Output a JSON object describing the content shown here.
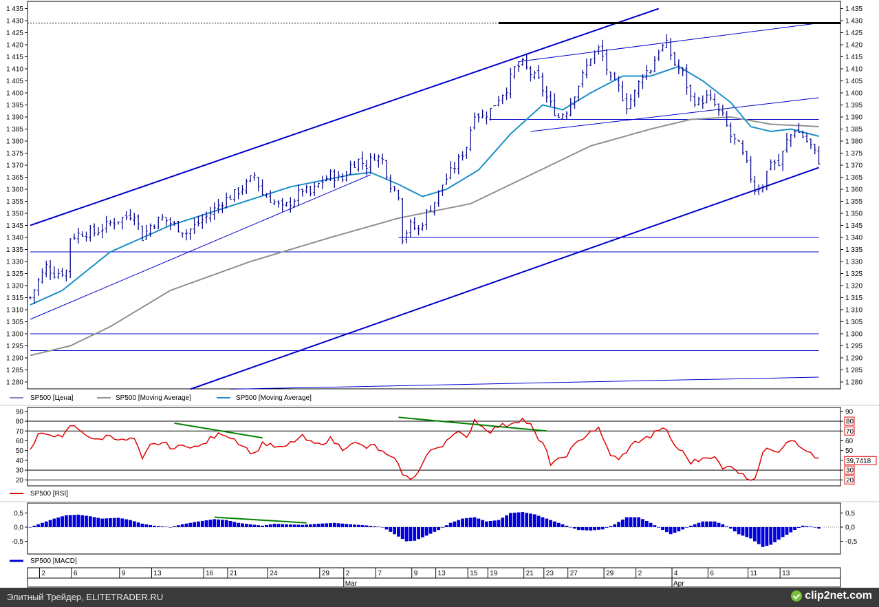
{
  "chart_data": [
    {
      "type": "line",
      "panel": "price",
      "y_ticks": [
        "1 280",
        "1 285",
        "1 290",
        "1 295",
        "1 300",
        "1 305",
        "1 310",
        "1 315",
        "1 320",
        "1 325",
        "1 330",
        "1 335",
        "1 340",
        "1 345",
        "1 350",
        "1 355",
        "1 360",
        "1 365",
        "1 370",
        "1 375",
        "1 380",
        "1 385",
        "1 390",
        "1 395",
        "1 400",
        "1 405",
        "1 410",
        "1 415",
        "1 420",
        "1 425",
        "1 430",
        "1 435"
      ],
      "ylim": [
        1277,
        1436
      ],
      "x_ticks": [
        "2",
        "6",
        "9",
        "13",
        "16",
        "21",
        "24",
        "29",
        "2",
        "7",
        "9",
        "13",
        "15",
        "19",
        "21",
        "23",
        "27",
        "29",
        "2",
        "4",
        "6",
        "11",
        "13"
      ],
      "month_labels": [
        "Mar",
        "Apr"
      ],
      "legend": [
        "SP500 [Цена]",
        "SP500 [Moving Average]",
        "SP500 [Moving Average]"
      ],
      "series_colors": {
        "price": "#0a0a8c",
        "ma_long": "#909090",
        "ma_short": "#1a8fc8",
        "lines": "#0000cc"
      },
      "close_anchors": [
        [
          0,
          1315
        ],
        [
          2,
          1322
        ],
        [
          4,
          1328
        ],
        [
          6,
          1325
        ],
        [
          9,
          1326
        ],
        [
          10,
          1340
        ],
        [
          13,
          1342
        ],
        [
          16,
          1342
        ],
        [
          20,
          1346
        ],
        [
          23,
          1348
        ],
        [
          26,
          1350
        ],
        [
          28,
          1340
        ],
        [
          30,
          1345
        ],
        [
          33,
          1348
        ],
        [
          36,
          1345
        ],
        [
          39,
          1342
        ],
        [
          42,
          1346
        ],
        [
          45,
          1350
        ],
        [
          48,
          1355
        ],
        [
          51,
          1358
        ],
        [
          54,
          1362
        ],
        [
          56,
          1366
        ],
        [
          58,
          1358
        ],
        [
          60,
          1356
        ],
        [
          63,
          1352
        ],
        [
          66,
          1356
        ],
        [
          68,
          1360
        ],
        [
          70,
          1358
        ],
        [
          72,
          1362
        ],
        [
          75,
          1366
        ],
        [
          78,
          1364
        ],
        [
          80,
          1370
        ],
        [
          82,
          1372
        ],
        [
          84,
          1370
        ],
        [
          86,
          1374
        ],
        [
          88,
          1372
        ],
        [
          90,
          1362
        ],
        [
          92,
          1358
        ],
        [
          93,
          1340
        ],
        [
          95,
          1345
        ],
        [
          97,
          1343
        ],
        [
          99,
          1350
        ],
        [
          101,
          1355
        ],
        [
          103,
          1362
        ],
        [
          105,
          1367
        ],
        [
          107,
          1372
        ],
        [
          109,
          1378
        ],
        [
          111,
          1392
        ],
        [
          113,
          1390
        ],
        [
          115,
          1393
        ],
        [
          117,
          1398
        ],
        [
          119,
          1402
        ],
        [
          121,
          1410
        ],
        [
          123,
          1412
        ],
        [
          125,
          1408
        ],
        [
          127,
          1405
        ],
        [
          129,
          1398
        ],
        [
          130,
          1395
        ],
        [
          132,
          1390
        ],
        [
          134,
          1393
        ],
        [
          136,
          1400
        ],
        [
          138,
          1407
        ],
        [
          140,
          1415
        ],
        [
          142,
          1418
        ],
        [
          143,
          1415
        ],
        [
          145,
          1405
        ],
        [
          147,
          1402
        ],
        [
          149,
          1395
        ],
        [
          151,
          1400
        ],
        [
          153,
          1408
        ],
        [
          155,
          1410
        ],
        [
          157,
          1418
        ],
        [
          159,
          1420
        ],
        [
          161,
          1412
        ],
        [
          163,
          1408
        ],
        [
          165,
          1398
        ],
        [
          167,
          1396
        ],
        [
          169,
          1398
        ],
        [
          171,
          1395
        ],
        [
          172,
          1392
        ],
        [
          173,
          1390
        ],
        [
          175,
          1382
        ],
        [
          177,
          1378
        ],
        [
          179,
          1370
        ],
        [
          181,
          1360
        ],
        [
          183,
          1362
        ],
        [
          185,
          1372
        ],
        [
          187,
          1370
        ],
        [
          189,
          1380
        ],
        [
          191,
          1385
        ],
        [
          193,
          1382
        ],
        [
          195,
          1378
        ],
        [
          197,
          1372
        ]
      ],
      "long_ma_anchors": [
        [
          0,
          1291
        ],
        [
          10,
          1295
        ],
        [
          20,
          1303
        ],
        [
          35,
          1318
        ],
        [
          55,
          1330
        ],
        [
          75,
          1340
        ],
        [
          92,
          1348
        ],
        [
          110,
          1354
        ],
        [
          125,
          1366
        ],
        [
          140,
          1378
        ],
        [
          155,
          1385
        ],
        [
          165,
          1389
        ],
        [
          175,
          1390
        ],
        [
          185,
          1387
        ],
        [
          197,
          1386
        ]
      ],
      "short_ma_anchors": [
        [
          0,
          1312
        ],
        [
          8,
          1318
        ],
        [
          20,
          1334
        ],
        [
          35,
          1345
        ],
        [
          50,
          1353
        ],
        [
          65,
          1361
        ],
        [
          80,
          1366
        ],
        [
          85,
          1367
        ],
        [
          92,
          1362
        ],
        [
          98,
          1357
        ],
        [
          104,
          1360
        ],
        [
          112,
          1368
        ],
        [
          120,
          1383
        ],
        [
          128,
          1395
        ],
        [
          133,
          1393
        ],
        [
          140,
          1400
        ],
        [
          148,
          1407
        ],
        [
          155,
          1407
        ],
        [
          162,
          1411
        ],
        [
          168,
          1405
        ],
        [
          175,
          1396
        ],
        [
          180,
          1386
        ],
        [
          185,
          1384
        ],
        [
          190,
          1385
        ],
        [
          197,
          1382
        ]
      ],
      "trendlines_data_units": [
        [
          0,
          1345,
          157,
          1435
        ],
        [
          0,
          1306,
          85,
          1366
        ],
        [
          40,
          1277,
          197,
          1369
        ],
        [
          50,
          1277,
          197,
          1282
        ],
        [
          122,
          1413,
          197,
          1429
        ],
        [
          125,
          1384,
          197,
          1398
        ],
        [
          115,
          1389,
          197,
          1389
        ],
        [
          92,
          1340,
          197,
          1340
        ],
        [
          0,
          1334,
          197,
          1334
        ],
        [
          0,
          1300,
          197,
          1300
        ],
        [
          0,
          1293,
          197,
          1293
        ]
      ],
      "thick_line": [
        117,
        1429,
        197,
        1429
      ],
      "dashed_line": [
        0,
        1429,
        117,
        1429
      ]
    },
    {
      "type": "line",
      "panel": "rsi",
      "legend": [
        "SP500 [RSI]"
      ],
      "y_ticks": [
        "20",
        "30",
        "40",
        "50",
        "60",
        "70",
        "80",
        "90"
      ],
      "right_labels": [
        "80",
        "70",
        "39,7418",
        "30",
        "20"
      ],
      "ylim": [
        16,
        92
      ],
      "levels": [
        20,
        30,
        70,
        80
      ],
      "values_anchors": [
        [
          0,
          50
        ],
        [
          2,
          65
        ],
        [
          5,
          68
        ],
        [
          8,
          62
        ],
        [
          10,
          76
        ],
        [
          13,
          70
        ],
        [
          16,
          60
        ],
        [
          20,
          66
        ],
        [
          23,
          60
        ],
        [
          26,
          62
        ],
        [
          28,
          40
        ],
        [
          30,
          55
        ],
        [
          33,
          58
        ],
        [
          36,
          52
        ],
        [
          39,
          56
        ],
        [
          42,
          53
        ],
        [
          45,
          62
        ],
        [
          48,
          68
        ],
        [
          51,
          62
        ],
        [
          54,
          52
        ],
        [
          56,
          46
        ],
        [
          58,
          58
        ],
        [
          60,
          55
        ],
        [
          63,
          52
        ],
        [
          66,
          60
        ],
        [
          68,
          64
        ],
        [
          70,
          58
        ],
        [
          72,
          56
        ],
        [
          75,
          62
        ],
        [
          78,
          52
        ],
        [
          80,
          58
        ],
        [
          82,
          56
        ],
        [
          84,
          53
        ],
        [
          86,
          55
        ],
        [
          88,
          48
        ],
        [
          90,
          42
        ],
        [
          92,
          38
        ],
        [
          93,
          24
        ],
        [
          95,
          22
        ],
        [
          97,
          28
        ],
        [
          99,
          45
        ],
        [
          101,
          52
        ],
        [
          103,
          56
        ],
        [
          105,
          66
        ],
        [
          107,
          68
        ],
        [
          109,
          62
        ],
        [
          111,
          82
        ],
        [
          113,
          74
        ],
        [
          115,
          70
        ],
        [
          117,
          75
        ],
        [
          119,
          76
        ],
        [
          121,
          80
        ],
        [
          123,
          82
        ],
        [
          125,
          76
        ],
        [
          127,
          60
        ],
        [
          129,
          52
        ],
        [
          130,
          35
        ],
        [
          132,
          40
        ],
        [
          134,
          46
        ],
        [
          136,
          55
        ],
        [
          138,
          63
        ],
        [
          140,
          70
        ],
        [
          142,
          72
        ],
        [
          143,
          62
        ],
        [
          145,
          46
        ],
        [
          147,
          40
        ],
        [
          149,
          50
        ],
        [
          151,
          58
        ],
        [
          153,
          62
        ],
        [
          155,
          64
        ],
        [
          157,
          72
        ],
        [
          159,
          70
        ],
        [
          161,
          55
        ],
        [
          163,
          48
        ],
        [
          165,
          38
        ],
        [
          167,
          40
        ],
        [
          169,
          45
        ],
        [
          171,
          42
        ],
        [
          172,
          38
        ],
        [
          173,
          30
        ],
        [
          175,
          36
        ],
        [
          177,
          28
        ],
        [
          179,
          22
        ],
        [
          181,
          22
        ],
        [
          183,
          48
        ],
        [
          185,
          52
        ],
        [
          187,
          50
        ],
        [
          189,
          60
        ],
        [
          191,
          62
        ],
        [
          193,
          50
        ],
        [
          195,
          48
        ],
        [
          197,
          40
        ]
      ],
      "divergence_lines": [
        [
          36,
          78,
          58,
          63
        ],
        [
          92,
          84,
          129,
          70
        ]
      ]
    },
    {
      "type": "area",
      "panel": "macd",
      "legend": [
        "SP500 [MACD]"
      ],
      "y_ticks": [
        "0,5",
        "0,0",
        "-0,5"
      ],
      "ylim": [
        -0.85,
        0.75
      ],
      "values_anchors": [
        [
          0,
          0.0
        ],
        [
          3,
          0.15
        ],
        [
          6,
          0.3
        ],
        [
          9,
          0.42
        ],
        [
          12,
          0.44
        ],
        [
          15,
          0.38
        ],
        [
          18,
          0.3
        ],
        [
          22,
          0.33
        ],
        [
          25,
          0.25
        ],
        [
          28,
          0.12
        ],
        [
          31,
          0.05
        ],
        [
          35,
          0.0
        ],
        [
          38,
          0.1
        ],
        [
          42,
          0.2
        ],
        [
          46,
          0.28
        ],
        [
          49,
          0.25
        ],
        [
          52,
          0.15
        ],
        [
          55,
          0.1
        ],
        [
          58,
          0.05
        ],
        [
          61,
          0.12
        ],
        [
          64,
          0.1
        ],
        [
          68,
          0.08
        ],
        [
          72,
          0.12
        ],
        [
          76,
          0.15
        ],
        [
          80,
          0.1
        ],
        [
          84,
          0.06
        ],
        [
          88,
          0.0
        ],
        [
          91,
          -0.25
        ],
        [
          94,
          -0.5
        ],
        [
          96,
          -0.48
        ],
        [
          99,
          -0.3
        ],
        [
          102,
          -0.1
        ],
        [
          105,
          0.15
        ],
        [
          108,
          0.3
        ],
        [
          111,
          0.35
        ],
        [
          114,
          0.2
        ],
        [
          117,
          0.25
        ],
        [
          120,
          0.5
        ],
        [
          123,
          0.53
        ],
        [
          126,
          0.45
        ],
        [
          129,
          0.3
        ],
        [
          132,
          0.15
        ],
        [
          135,
          0.0
        ],
        [
          137,
          -0.1
        ],
        [
          140,
          -0.12
        ],
        [
          143,
          -0.08
        ],
        [
          146,
          0.1
        ],
        [
          149,
          0.35
        ],
        [
          152,
          0.35
        ],
        [
          155,
          0.15
        ],
        [
          158,
          -0.1
        ],
        [
          160,
          -0.25
        ],
        [
          162,
          -0.15
        ],
        [
          165,
          0.05
        ],
        [
          168,
          0.2
        ],
        [
          171,
          0.2
        ],
        [
          173,
          0.1
        ],
        [
          175,
          -0.05
        ],
        [
          177,
          -0.25
        ],
        [
          180,
          -0.4
        ],
        [
          183,
          -0.7
        ],
        [
          185,
          -0.62
        ],
        [
          188,
          -0.35
        ],
        [
          191,
          -0.1
        ],
        [
          193,
          0.05
        ],
        [
          195,
          0.02
        ],
        [
          197,
          -0.05
        ]
      ],
      "divergence_lines": [
        [
          46,
          0.35,
          69,
          0.15
        ]
      ]
    }
  ],
  "footer": {
    "site": "Элитный Трейдер, ELITETRADER.RU",
    "brand": "clip2net.com"
  }
}
